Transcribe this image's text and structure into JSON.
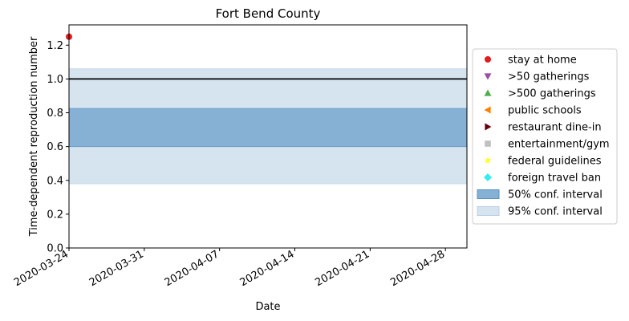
{
  "chart_data": {
    "type": "line",
    "title": "Fort Bend County",
    "xlabel": "Date",
    "ylabel": "Time-dependent reproduction number",
    "x_range": [
      "2020-03-24",
      "2020-04-30"
    ],
    "ylim": [
      0,
      1.32
    ],
    "x_ticks": [
      "2020-03-24",
      "2020-03-31",
      "2020-04-07",
      "2020-04-14",
      "2020-04-21",
      "2020-04-28"
    ],
    "y_ticks": [
      "0.0",
      "0.2",
      "0.4",
      "0.6",
      "0.8",
      "1.0",
      "1.2"
    ],
    "reference_line": {
      "y": 1.0,
      "color": "#000000"
    },
    "bands": [
      {
        "name": "95% conf. interval",
        "from": "2020-03-24",
        "to": "2020-04-30",
        "lower": 0.38,
        "upper": 1.06,
        "color": "#d6e4f0"
      },
      {
        "name": "50% conf. interval",
        "from": "2020-03-24",
        "to": "2020-04-30",
        "lower": 0.6,
        "upper": 0.825,
        "color": "#86b0d4"
      }
    ],
    "events": [
      {
        "name": "stay at home",
        "x": "2020-03-24",
        "y": 1.25,
        "marker": "circle",
        "color": "#e41a1c"
      }
    ],
    "legend": {
      "position": "right",
      "entries": [
        {
          "label": "stay at home",
          "marker": "circle",
          "color": "#e41a1c"
        },
        {
          "label": ">50 gatherings",
          "marker": "triangle-down",
          "color": "#984ea3"
        },
        {
          "label": ">500 gatherings",
          "marker": "triangle-up",
          "color": "#4daf4a"
        },
        {
          "label": "public schools",
          "marker": "triangle-left",
          "color": "#ff7f00"
        },
        {
          "label": "restaurant dine-in",
          "marker": "triangle-right",
          "color": "#67000d"
        },
        {
          "label": "entertainment/gym",
          "marker": "square",
          "color": "#c0c0c0"
        },
        {
          "label": "federal guidelines",
          "marker": "star",
          "color": "#ffff33"
        },
        {
          "label": "foreign travel ban",
          "marker": "diamond",
          "color": "#33eeee"
        },
        {
          "label": "50% conf. interval",
          "marker": "patch",
          "color": "#86b0d4",
          "edge": "#5a90c0"
        },
        {
          "label": "95% conf. interval",
          "marker": "patch",
          "color": "#d6e4f0",
          "edge": "#b8cfe4"
        }
      ]
    },
    "grid": false
  }
}
